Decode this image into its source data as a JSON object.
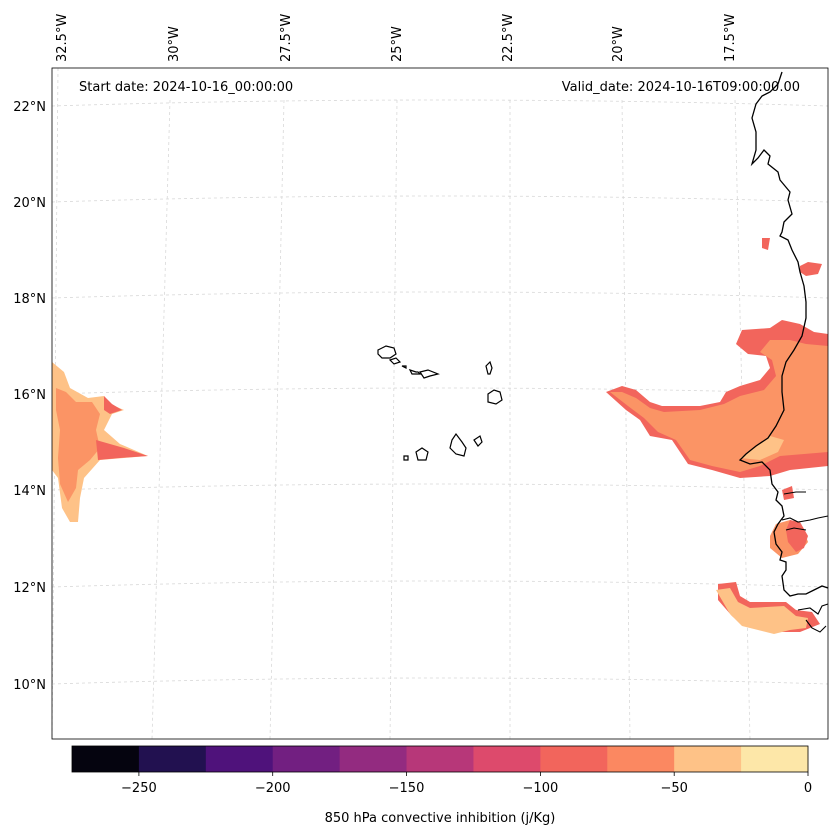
{
  "map": {
    "start_date_label": "Start date: 2024-10-16_00:00:00",
    "valid_date_label": "Valid_date: 2024-10-16T09:00:00.00",
    "lon_labels": [
      "32.5°W",
      "30°W",
      "27.5°W",
      "25°W",
      "22.5°W",
      "20°W",
      "17.5°W"
    ],
    "lat_labels": [
      "22°N",
      "20°N",
      "18°N",
      "16°N",
      "14°N",
      "12°N",
      "10°N"
    ]
  },
  "colorbar": {
    "label": "850 hPa convective inhibition (j/Kg)",
    "ticks": [
      "−250",
      "−200",
      "−150",
      "−100",
      "−50",
      "0"
    ],
    "colors": [
      "#05040f",
      "#221150",
      "#4f127b",
      "#721f81",
      "#932b80",
      "#b73779",
      "#dd4a6c",
      "#f2655c",
      "#fb8861",
      "#fec287",
      "#fde7a8"
    ]
  },
  "colors": {
    "fill_dark": "#f2655c",
    "fill_mid": "#fb9465",
    "fill_light": "#fec287",
    "coast": "#000000",
    "grid": "#d8d8d8"
  }
}
